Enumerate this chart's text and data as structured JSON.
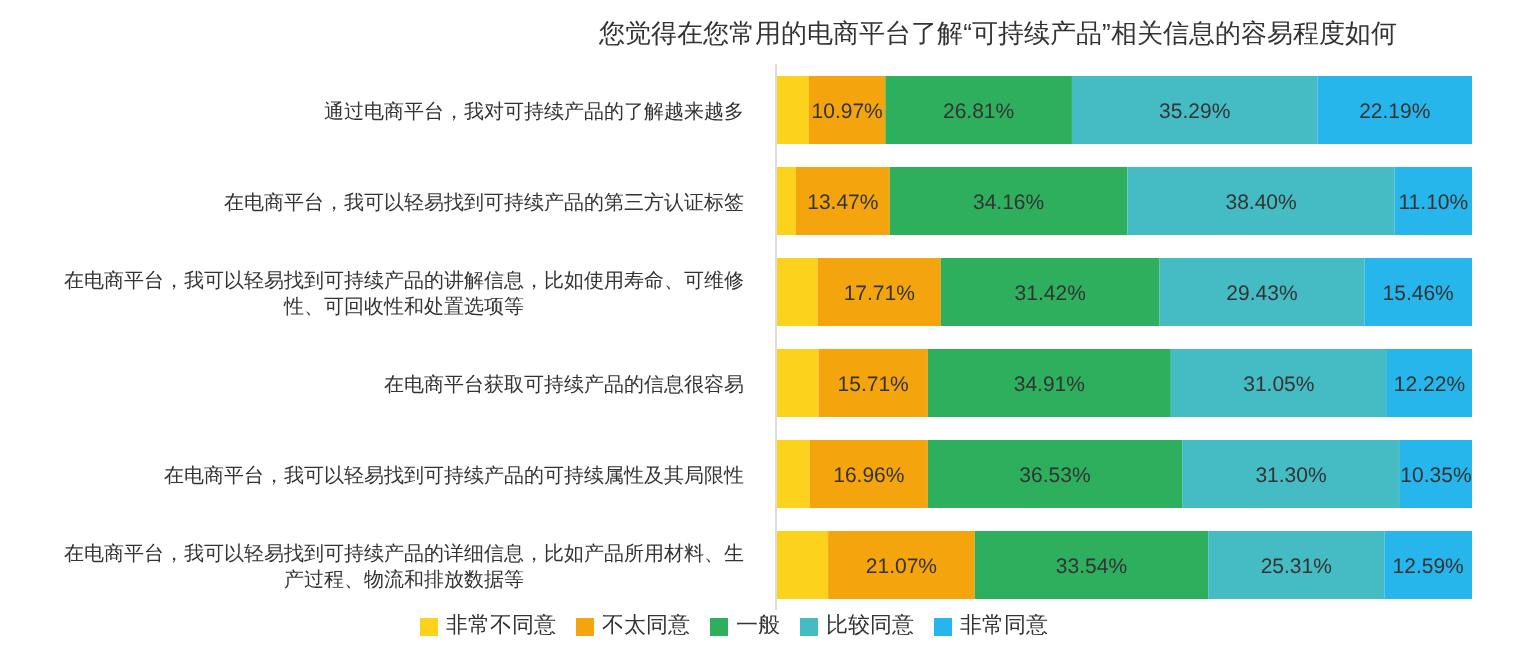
{
  "chart_data": {
    "type": "bar",
    "orientation": "horizontal",
    "stacked": true,
    "title": "您觉得在您常用的电商平台了解“可持续产品”相关信息的容易程度如何",
    "categories": [
      "通过电商平台，我对可持续产品的了解越来越多",
      "在电商平台，我可以轻易找到可持续产品的第三方认证标签",
      "在电商平台，我可以轻易找到可持续产品的讲解信息，比如使用寿命、可维修性、可回收性和处置选项等",
      "在电商平台获取可持续产品的信息很容易",
      "在电商平台，我可以轻易找到可持续产品的可持续属性及其局限性",
      "在电商平台，我可以轻易找到可持续产品的详细信息，比如产品所用材料、生产过程、物流和排放数据等"
    ],
    "series": [
      {
        "name": "非常不同意",
        "color": "#fcd21d",
        "values": [
          4.74,
          2.87,
          5.98,
          6.11,
          4.86,
          7.49
        ],
        "value_labels": [
          null,
          null,
          null,
          null,
          null,
          null
        ]
      },
      {
        "name": "不太同意",
        "color": "#f4a40c",
        "values": [
          10.97,
          13.47,
          17.71,
          15.71,
          16.96,
          21.07
        ],
        "value_labels": [
          "10.97%",
          "13.47%",
          "17.71%",
          "15.71%",
          "16.96%",
          "21.07%"
        ]
      },
      {
        "name": "一般",
        "color": "#2eaf5e",
        "values": [
          26.81,
          34.16,
          31.42,
          34.91,
          36.53,
          33.54
        ],
        "value_labels": [
          "26.81%",
          "34.16%",
          "31.42%",
          "34.91%",
          "36.53%",
          "33.54%"
        ]
      },
      {
        "name": "比较同意",
        "color": "#45bcc4",
        "values": [
          35.29,
          38.4,
          29.43,
          31.05,
          31.3,
          25.31
        ],
        "value_labels": [
          "35.29%",
          "38.40%",
          "29.43%",
          "31.05%",
          "31.30%",
          "25.31%"
        ]
      },
      {
        "name": "非常同意",
        "color": "#27b6ec",
        "values": [
          22.19,
          11.1,
          15.46,
          12.22,
          10.35,
          12.59
        ],
        "value_labels": [
          "22.19%",
          "11.10%",
          "15.46%",
          "12.22%",
          "10.35%",
          "12.59%"
        ]
      }
    ],
    "legend": "bottom",
    "grid": false
  }
}
